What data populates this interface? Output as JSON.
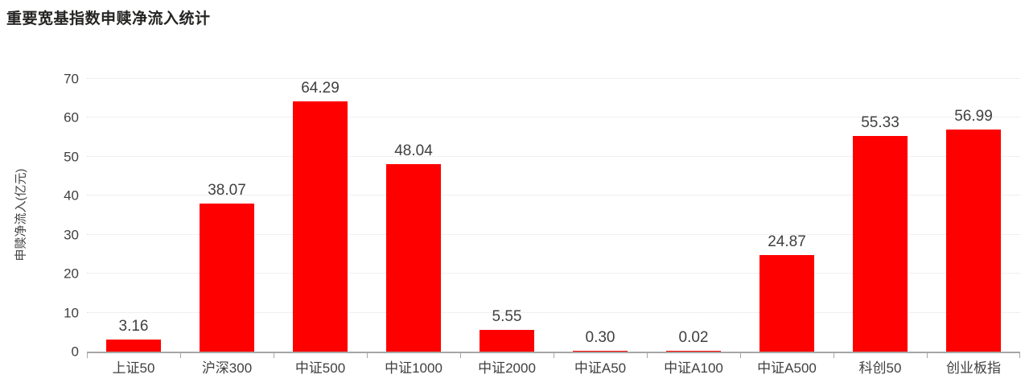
{
  "title": "重要宽基指数申赎净流入统计",
  "chart_data": {
    "type": "bar",
    "title": "重要宽基指数申赎净流入统计",
    "categories": [
      "上证50",
      "沪深300",
      "中证500",
      "中证1000",
      "中证2000",
      "中证A50",
      "中证A100",
      "中证A500",
      "科创50",
      "创业板指"
    ],
    "values": [
      3.16,
      38.07,
      64.29,
      48.04,
      5.55,
      0.3,
      0.02,
      24.87,
      55.33,
      56.99
    ],
    "value_labels": [
      "3.16",
      "38.07",
      "64.29",
      "48.04",
      "5.55",
      "0.30",
      "0.02",
      "24.87",
      "55.33",
      "56.99"
    ],
    "xlabel": "",
    "ylabel": "申赎净流入(亿元)",
    "ylim": [
      0,
      70
    ],
    "yticks": [
      0,
      10,
      20,
      30,
      40,
      50,
      60,
      70
    ],
    "grid": "horizontal-dotted",
    "legend": "none",
    "bar_color": "#ff0000"
  },
  "colors": {
    "bar": "#ff0000",
    "title_text": "#252423",
    "axis_text": "#404040",
    "gridline": "#e1e1e1",
    "axis_line": "#a6a6a6",
    "background": "#ffffff"
  }
}
